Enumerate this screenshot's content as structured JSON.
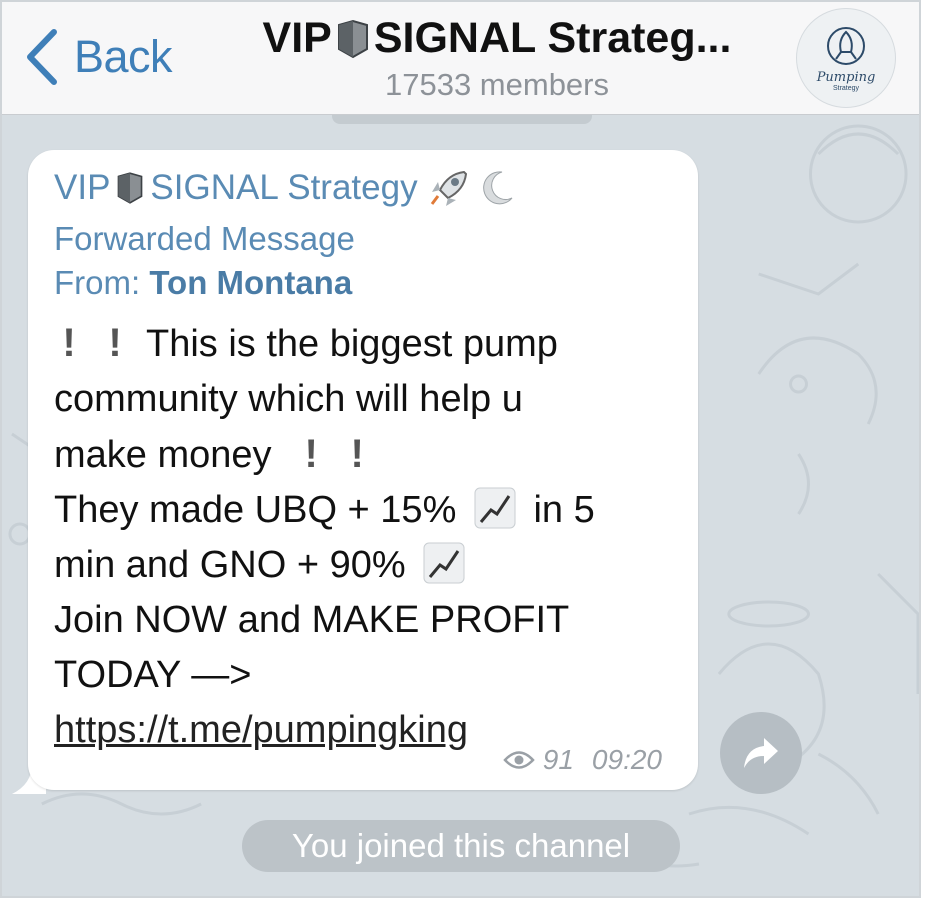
{
  "header": {
    "back_label": "Back",
    "title_pre": "VIP",
    "title_post": "SIGNAL Strateg...",
    "members": "17533 members",
    "avatar_text": "Pumping",
    "avatar_sub": "Strategy"
  },
  "message": {
    "channel_pre": "VIP",
    "channel_post": "SIGNAL Strategy",
    "forwarded": "Forwarded Message",
    "from_label": "From:",
    "from_name": "Ton Montana",
    "line1": "This is the biggest pump",
    "line2": "community which will help u",
    "line3": "make money",
    "line4a": "They made UBQ + 15%",
    "line4b": "in 5",
    "line5": "min and GNO + 90%",
    "line6": "Join NOW and MAKE PROFIT",
    "line7": "TODAY —>",
    "link": "https://t.me/pumpingking",
    "views": "91",
    "time": "09:20"
  },
  "service": {
    "joined": "You joined this channel"
  },
  "icons": {
    "back": "chevron-left-icon",
    "shield": "shield-icon",
    "rocket": "rocket-icon",
    "moon": "crescent-moon-icon",
    "chart": "chart-increasing-icon",
    "eye": "eye-icon",
    "share": "share-arrow-icon"
  },
  "colors": {
    "accent": "#3f7fb8",
    "channel_name": "#5a8bb4",
    "chat_bg": "#d6dde2"
  }
}
